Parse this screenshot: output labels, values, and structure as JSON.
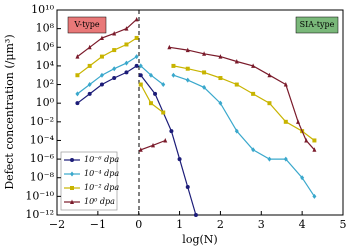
{
  "chart_data": {
    "type": "line",
    "y_scale": "log",
    "ylabel": "Defect concentration (/μm³)",
    "xlabel": "log(N)",
    "annotations": [
      "V-type",
      "SIA-type"
    ],
    "xlim": [
      -2,
      5
    ],
    "ylim": [
      1e-12,
      10000000000.0
    ],
    "xticks": [
      {
        "value": -2,
        "label": "−2"
      },
      {
        "value": -1,
        "label": "−1"
      },
      0,
      1,
      2,
      3,
      4,
      5
    ],
    "yticks": [
      {
        "value": 1e-12,
        "label": "10⁻¹²"
      },
      {
        "value": 1e-10,
        "label": "10⁻¹⁰"
      },
      {
        "value": 1e-08,
        "label": "10⁻⁸"
      },
      {
        "value": 1e-06,
        "label": "10⁻⁶"
      },
      {
        "value": 0.0001,
        "label": "10⁻⁴"
      },
      {
        "value": 0.01,
        "label": "10⁻²"
      },
      {
        "value": 1,
        "label": "10⁰"
      },
      {
        "value": 100,
        "label": "10²"
      },
      {
        "value": 10000,
        "label": "10⁴"
      },
      {
        "value": 1000000,
        "label": "10⁶"
      },
      {
        "value": 100000000,
        "label": "10⁸"
      },
      {
        "value": 10000000000,
        "label": "10¹⁰"
      }
    ],
    "series": [
      {
        "name": "10⁻⁶ dpa",
        "color": "#1c1c78",
        "marker": "circle",
        "x": [
          -1.5,
          -1.2,
          -0.9,
          -0.6,
          -0.3,
          -0.05,
          null,
          0.05,
          0.4,
          0.8,
          1.0,
          1.2,
          1.4
        ],
        "values": [
          1,
          10,
          100,
          500,
          2000,
          10000,
          null,
          1000,
          10,
          0.001,
          1e-06,
          1e-09,
          1e-12
        ]
      },
      {
        "name": "10⁻⁴ dpa",
        "color": "#3aa8cc",
        "marker": "diamond",
        "x": [
          -1.5,
          -1.2,
          -0.9,
          -0.6,
          -0.3,
          -0.05,
          null,
          0.05,
          0.3,
          0.6,
          null,
          0.85,
          1.2,
          1.6,
          2.0,
          2.4,
          2.8,
          3.2,
          3.6,
          4.0,
          4.3
        ],
        "values": [
          10,
          100,
          1000,
          5000,
          20000,
          100000,
          null,
          10000,
          1000,
          100,
          null,
          1000,
          300,
          50,
          1,
          0.001,
          1e-05,
          1e-06,
          1e-06,
          1e-08,
          1e-10
        ]
      },
      {
        "name": "10⁻² dpa",
        "color": "#c8b400",
        "marker": "square",
        "x": [
          -1.5,
          -1.2,
          -0.9,
          -0.6,
          -0.3,
          -0.05,
          null,
          0.05,
          0.3,
          0.6,
          null,
          0.85,
          1.2,
          1.6,
          2.0,
          2.4,
          2.8,
          3.2,
          3.6,
          4.0,
          4.3
        ],
        "values": [
          1000,
          10000,
          100000,
          500000,
          2000000,
          10000000,
          null,
          100,
          1,
          0.1,
          null,
          10000,
          5000,
          2000,
          500,
          100,
          10,
          1,
          0.01,
          0.001,
          0.0001
        ]
      },
      {
        "name": "10⁰ dpa",
        "color": "#7a1a2a",
        "marker": "triangle",
        "x": [
          -1.5,
          -1.2,
          -0.9,
          -0.6,
          -0.3,
          -0.05,
          null,
          0.05,
          0.35,
          0.65,
          null,
          0.75,
          1.2,
          1.6,
          2.0,
          2.4,
          2.8,
          3.2,
          3.6,
          3.9,
          4.1,
          4.3
        ],
        "values": [
          100000,
          1000000,
          10000000,
          30000000,
          100000000,
          1000000000,
          null,
          1e-05,
          3e-05,
          0.0001,
          null,
          1000000,
          500000,
          200000,
          100000,
          30000,
          10000,
          1000,
          100,
          0.01,
          0.0001,
          1e-05
        ]
      }
    ]
  }
}
